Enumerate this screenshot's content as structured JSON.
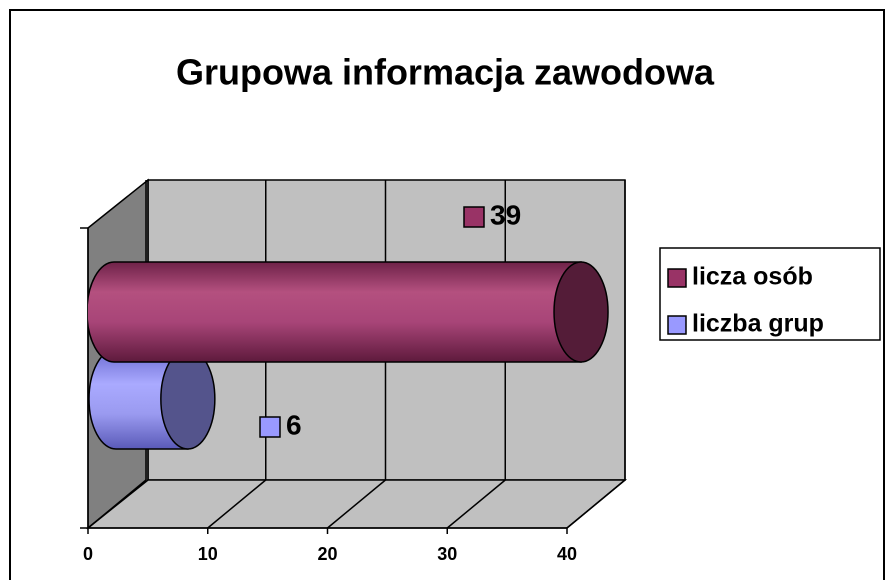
{
  "chart_data": {
    "type": "bar",
    "orientation": "horizontal",
    "three_d": true,
    "title": "Grupowa informacja zawodowa",
    "categories": [
      null
    ],
    "series": [
      {
        "name": "licza osób",
        "color": "#993366",
        "values": [
          39
        ]
      },
      {
        "name": "liczba grup",
        "color": "#9999ff",
        "values": [
          6
        ]
      }
    ],
    "xlim": [
      0,
      40
    ],
    "xticks": [
      0,
      10,
      20,
      30,
      40
    ],
    "grid": true,
    "legend": "right"
  }
}
